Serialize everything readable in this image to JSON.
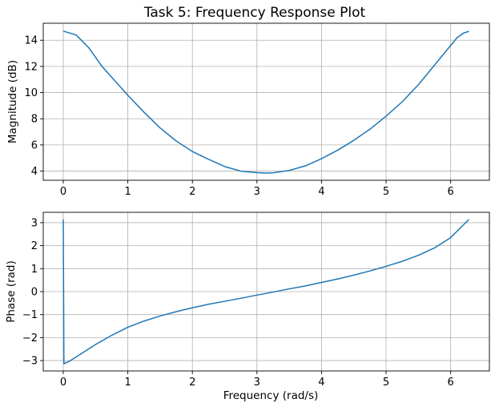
{
  "chart_data": [
    {
      "type": "line",
      "title": "Task 5: Frequency Response Plot",
      "xlabel": "",
      "ylabel": "Magnitude (dB)",
      "xlim": [
        -0.31,
        6.6
      ],
      "ylim": [
        3.3,
        15.3
      ],
      "xticks": [
        0,
        1,
        2,
        3,
        4,
        5,
        6
      ],
      "yticks": [
        4,
        6,
        8,
        10,
        12,
        14
      ],
      "grid": true,
      "series": [
        {
          "color": "#1f77b4",
          "x": [
            0,
            0.2,
            0.4,
            0.6,
            0.8,
            1.0,
            1.25,
            1.5,
            1.75,
            2.0,
            2.25,
            2.5,
            2.75,
            3.0,
            3.14,
            3.25,
            3.5,
            3.75,
            4.0,
            4.25,
            4.5,
            4.75,
            5.0,
            5.25,
            5.5,
            5.75,
            6.0,
            6.1,
            6.2,
            6.283
          ],
          "y": [
            14.7,
            14.4,
            13.4,
            12.0,
            10.9,
            9.8,
            8.5,
            7.3,
            6.3,
            5.5,
            4.9,
            4.35,
            4.0,
            3.88,
            3.85,
            3.87,
            4.05,
            4.4,
            4.95,
            5.6,
            6.35,
            7.2,
            8.2,
            9.3,
            10.6,
            12.1,
            13.6,
            14.2,
            14.55,
            14.68
          ]
        }
      ]
    },
    {
      "type": "line",
      "title": "",
      "xlabel": "Frequency (rad/s)",
      "ylabel": "Phase (rad)",
      "xlim": [
        -0.31,
        6.6
      ],
      "ylim": [
        -3.45,
        3.45
      ],
      "xticks": [
        0,
        1,
        2,
        3,
        4,
        5,
        6
      ],
      "yticks": [
        -3,
        -2,
        -1,
        0,
        1,
        2,
        3
      ],
      "grid": true,
      "series": [
        {
          "color": "#1f77b4",
          "x": [
            0,
            0.01,
            0.02,
            0.1,
            0.25,
            0.5,
            0.75,
            1.0,
            1.25,
            1.5,
            1.75,
            2.0,
            2.25,
            2.5,
            2.75,
            3.0,
            3.25,
            3.5,
            3.75,
            4.0,
            4.25,
            4.5,
            4.75,
            5.0,
            5.25,
            5.5,
            5.75,
            6.0,
            6.283
          ],
          "y": [
            3.14,
            -3.14,
            -3.12,
            -3.02,
            -2.75,
            -2.3,
            -1.9,
            -1.55,
            -1.28,
            -1.06,
            -0.87,
            -0.7,
            -0.55,
            -0.42,
            -0.29,
            -0.15,
            -0.02,
            0.12,
            0.25,
            0.4,
            0.55,
            0.72,
            0.9,
            1.1,
            1.32,
            1.58,
            1.9,
            2.35,
            3.14
          ]
        }
      ]
    }
  ],
  "labels": {
    "title": "Task 5: Frequency Response Plot",
    "top_ylabel": "Magnitude (dB)",
    "bottom_ylabel": "Phase (rad)",
    "xlabel": "Frequency (rad/s)"
  }
}
